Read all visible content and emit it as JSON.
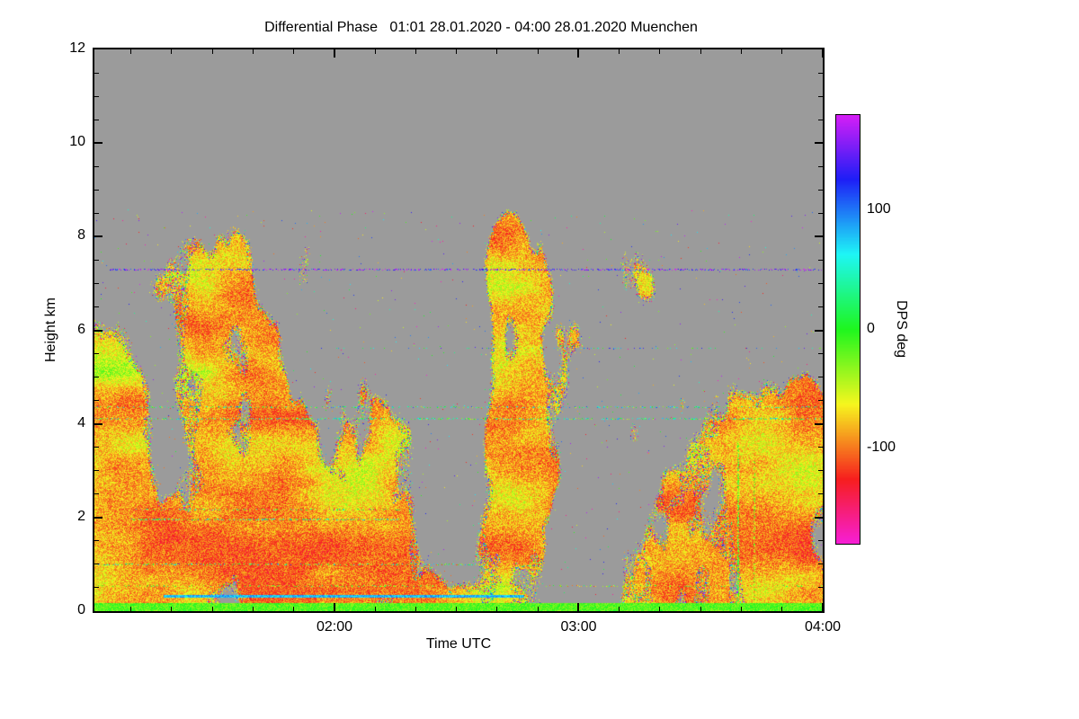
{
  "title": "Differential Phase   01:01 28.01.2020 - 04:00 28.01.2020 Muenchen",
  "chart_data": {
    "type": "heatmap",
    "title": "Differential Phase   01:01 28.01.2020 - 04:00 28.01.2020 Muenchen",
    "xlabel": "Time UTC",
    "ylabel": "Height km",
    "x_range": [
      "01:01 28.01.2020",
      "04:00 28.01.2020"
    ],
    "x_ticks": [
      {
        "label": "02:00",
        "minute": 59
      },
      {
        "label": "03:00",
        "minute": 119
      },
      {
        "label": "04:00",
        "minute": 179
      }
    ],
    "x_total_minutes": 179,
    "x_start_wall_minute": 61,
    "x_minor_step_minutes": 10,
    "y_ticks": [
      0,
      2,
      4,
      6,
      8,
      10,
      12
    ],
    "y_minor_step": 0.5,
    "y_range_km": [
      0,
      12
    ],
    "grid": false,
    "colorbar": {
      "label": "DPS deg",
      "ticks": [
        100,
        0,
        -100
      ],
      "vmin": -180,
      "vmax": 180,
      "position": "right"
    },
    "description": "Radar differential-phase time-height plot over Muenchen. Gray = no data. Echo regions (mostly below 8.5 km) are dominated by orange-red values near -60..-120 deg with green patches near 0 deg and multicolor speckle at echo edges. Bright green ground-clutter line near 0.1 km across full width, solid cyan horizontal line near 0.3 km between ~01:18 and ~02:45, sparse green/cyan streak lines near 4.1 and 4.4 km, sparse purple/blue streak near 7.3 km, narrow colorful vertical lines near 03:40-03:50 below 3.6 km.",
    "render_params": {
      "seed": 1337,
      "no_data_rgb": [
        155,
        155,
        155
      ],
      "vmin": -180,
      "vmax": 180,
      "hue_base": 120,
      "hue_per_deg": 0.95,
      "plume_fx": 0.013,
      "plume_fy": 0.0045,
      "contrast": 2.2,
      "th0": 0.3,
      "th_slope": 0.072,
      "top_fade_h": 7.0,
      "top_fade_slope": 0.18,
      "edge_band": 0.05,
      "edge_rainbow_p": 0.35,
      "fuzz_band": 0.06,
      "fuzz_p": 0.45,
      "speckle_p": 0.003,
      "speckle_max_h": 8.6,
      "color_fx": 0.011,
      "color_fy": 0.02,
      "v_base": -118,
      "v_span": 95,
      "v_pow": 1.5,
      "v_jitter": 55,
      "ground_h": 0.18,
      "ground_v0": -38,
      "ground_vspan": 45,
      "streaks": [
        {
          "h": 0.34,
          "x0": 0.095,
          "x1": 0.59,
          "v": 80,
          "jitter": 25,
          "density": 1.0,
          "px": 3
        },
        {
          "h": 7.32,
          "x0": 0.02,
          "x1": 1.0,
          "v": 150,
          "jitter": 55,
          "density": 0.35,
          "px": 2
        },
        {
          "h": 4.12,
          "x0": 0.0,
          "x1": 1.0,
          "v": 20,
          "jitter": 75,
          "density": 0.3,
          "px": 2
        },
        {
          "h": 4.38,
          "x0": 0.0,
          "x1": 1.0,
          "v": 30,
          "jitter": 85,
          "density": 0.22,
          "px": 2
        },
        {
          "h": 1.02,
          "x0": 0.0,
          "x1": 0.55,
          "v": -10,
          "jitter": 120,
          "density": 0.3,
          "px": 2
        },
        {
          "h": 1.98,
          "x0": 0.05,
          "x1": 0.42,
          "v": 10,
          "jitter": 90,
          "density": 0.35,
          "px": 2
        },
        {
          "h": 2.18,
          "x0": 0.05,
          "x1": 0.42,
          "v": -60,
          "jitter": 120,
          "density": 0.3,
          "px": 2
        },
        {
          "h": 5.62,
          "x0": 0.3,
          "x1": 1.0,
          "v": 60,
          "jitter": 90,
          "density": 0.12,
          "px": 1
        },
        {
          "h": 0.55,
          "x0": 0.0,
          "x1": 1.0,
          "v": -40,
          "jitter": 80,
          "density": 0.2,
          "px": 2
        }
      ],
      "columns": [
        {
          "x": 0.868,
          "h0": 0.2,
          "h1": 2.6,
          "v": -90,
          "jitter": 30,
          "density": 0.8,
          "px": 3
        },
        {
          "x": 0.883,
          "h0": 0.2,
          "h1": 3.6,
          "v": -15,
          "jitter": 50,
          "density": 0.7,
          "px": 2
        },
        {
          "x": 0.905,
          "h0": 0.2,
          "h1": 3.2,
          "v": -60,
          "jitter": 60,
          "density": 0.6,
          "px": 2
        }
      ]
    }
  }
}
